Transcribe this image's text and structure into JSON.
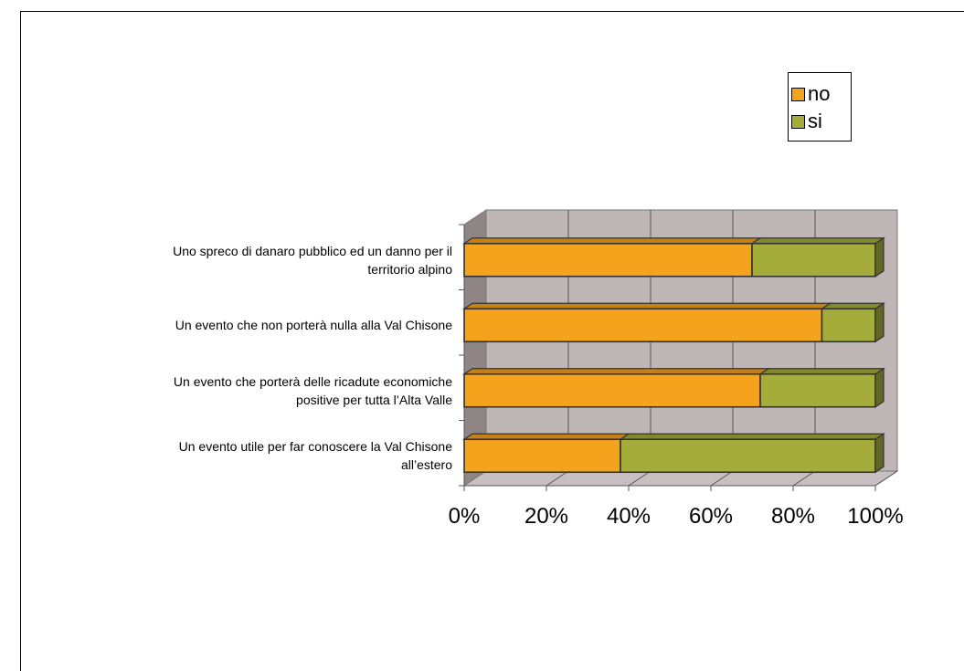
{
  "chart_data": {
    "type": "bar",
    "orientation": "horizontal",
    "stacked": "percent",
    "three_d": true,
    "categories": [
      "Uno spreco di danaro pubblico ed un danno per il territorio alpino",
      "Un evento che non porterà nulla alla Val Chisone",
      "Un evento che porterà delle ricadute economiche positive per tutta l’Alta Valle",
      "Un evento utile per far conoscere la Val Chisone all’estero"
    ],
    "category_label_lines": [
      [
        "Uno spreco di danaro pubblico ed un danno per il",
        "territorio alpino"
      ],
      [
        "Un evento che non porterà nulla alla Val Chisone"
      ],
      [
        "Un evento che porterà delle ricadute economiche",
        "positive per tutta l’Alta Valle"
      ],
      [
        "Un evento utile per far conoscere la Val Chisone",
        "all’estero"
      ]
    ],
    "series": [
      {
        "name": "no",
        "values": [
          70,
          87,
          72,
          38
        ]
      },
      {
        "name": "si",
        "values": [
          30,
          13,
          28,
          62
        ]
      }
    ],
    "xlim": [
      0,
      100
    ],
    "x_ticks": [
      "0%",
      "20%",
      "40%",
      "60%",
      "80%",
      "100%"
    ],
    "grid": true,
    "legend_position": "top-right",
    "colors": {
      "no": "#F5A21C",
      "si": "#A4AD3A",
      "plot_wall": "#BFB6B6",
      "side_wall": "#8F8585",
      "floor": "#C8C0C0",
      "grid": "#555555"
    }
  }
}
